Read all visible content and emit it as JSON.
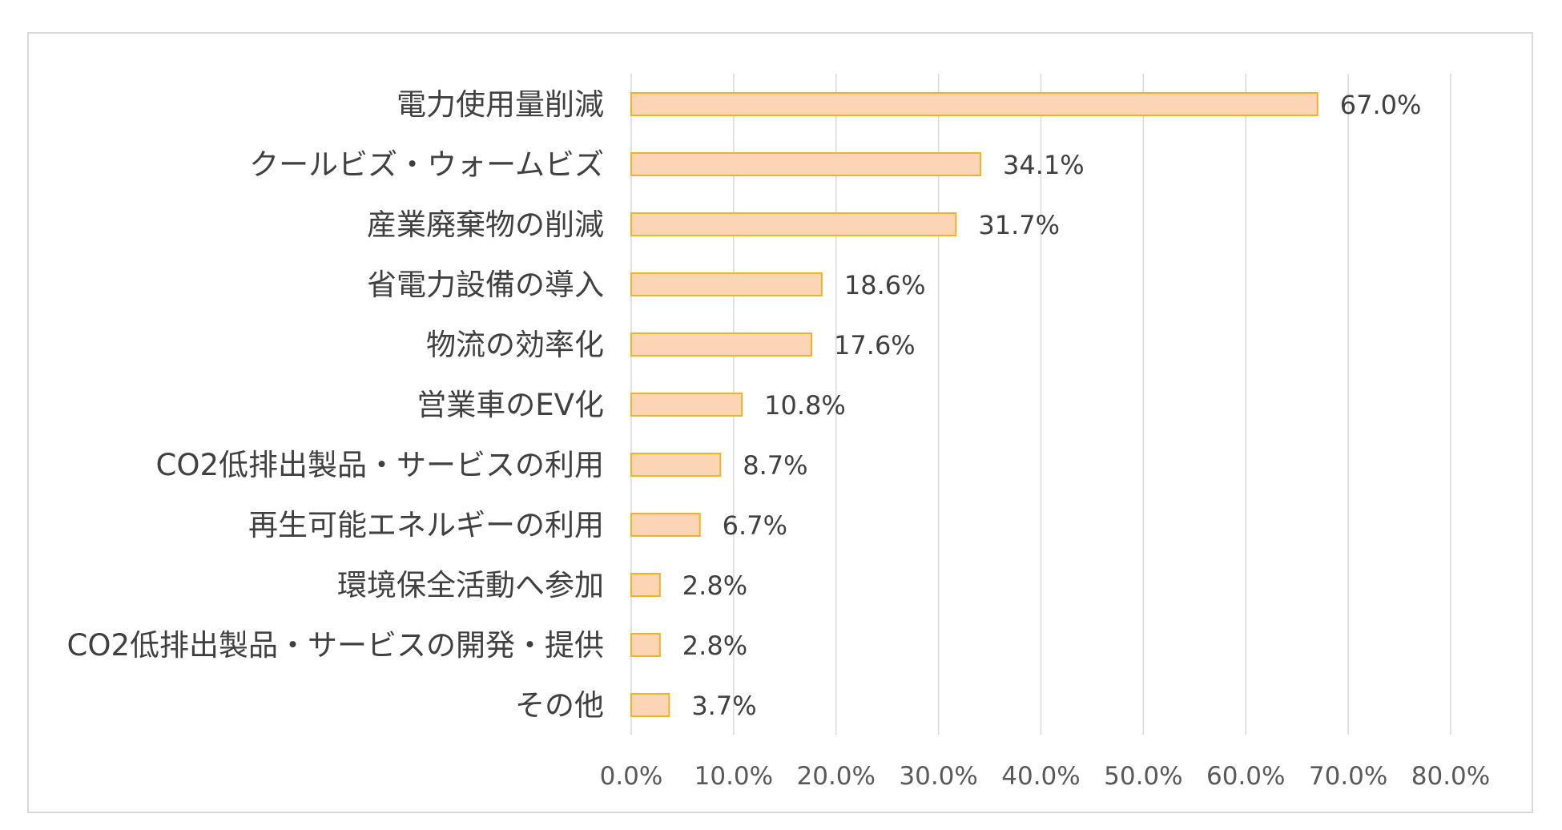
{
  "chart_data": {
    "type": "bar",
    "orientation": "horizontal",
    "title": "",
    "xlabel": "",
    "ylabel": "",
    "categories": [
      "電力使用量削減",
      "クールビズ・ウォームビズ",
      "産業廃棄物の削減",
      "省電力設備の導入",
      "物流の効率化",
      "営業車のEV化",
      "CO2低排出製品・サービスの利用",
      "再生可能エネルギーの利用",
      "環境保全活動へ参加",
      "CO2低排出製品・サービスの開発・提供",
      "その他"
    ],
    "values": [
      67.0,
      34.1,
      31.7,
      18.6,
      17.6,
      10.8,
      8.7,
      6.7,
      2.8,
      2.8,
      3.7
    ],
    "value_labels": [
      "67.0%",
      "34.1%",
      "31.7%",
      "18.6%",
      "17.6%",
      "10.8%",
      "8.7%",
      "6.7%",
      "2.8%",
      "2.8%",
      "3.7%"
    ],
    "xlim": [
      0,
      80
    ],
    "x_ticks": [
      0,
      10,
      20,
      30,
      40,
      50,
      60,
      70,
      80
    ],
    "x_tick_labels": [
      "0.0%",
      "10.0%",
      "20.0%",
      "30.0%",
      "40.0%",
      "50.0%",
      "60.0%",
      "70.0%",
      "80.0%"
    ],
    "grid": "vertical",
    "legend": "none",
    "colors": {
      "bar_fill": "#fbd5b5",
      "bar_stroke": "#f0b323",
      "grid": "#d9d9d9",
      "text": "#404040"
    }
  }
}
